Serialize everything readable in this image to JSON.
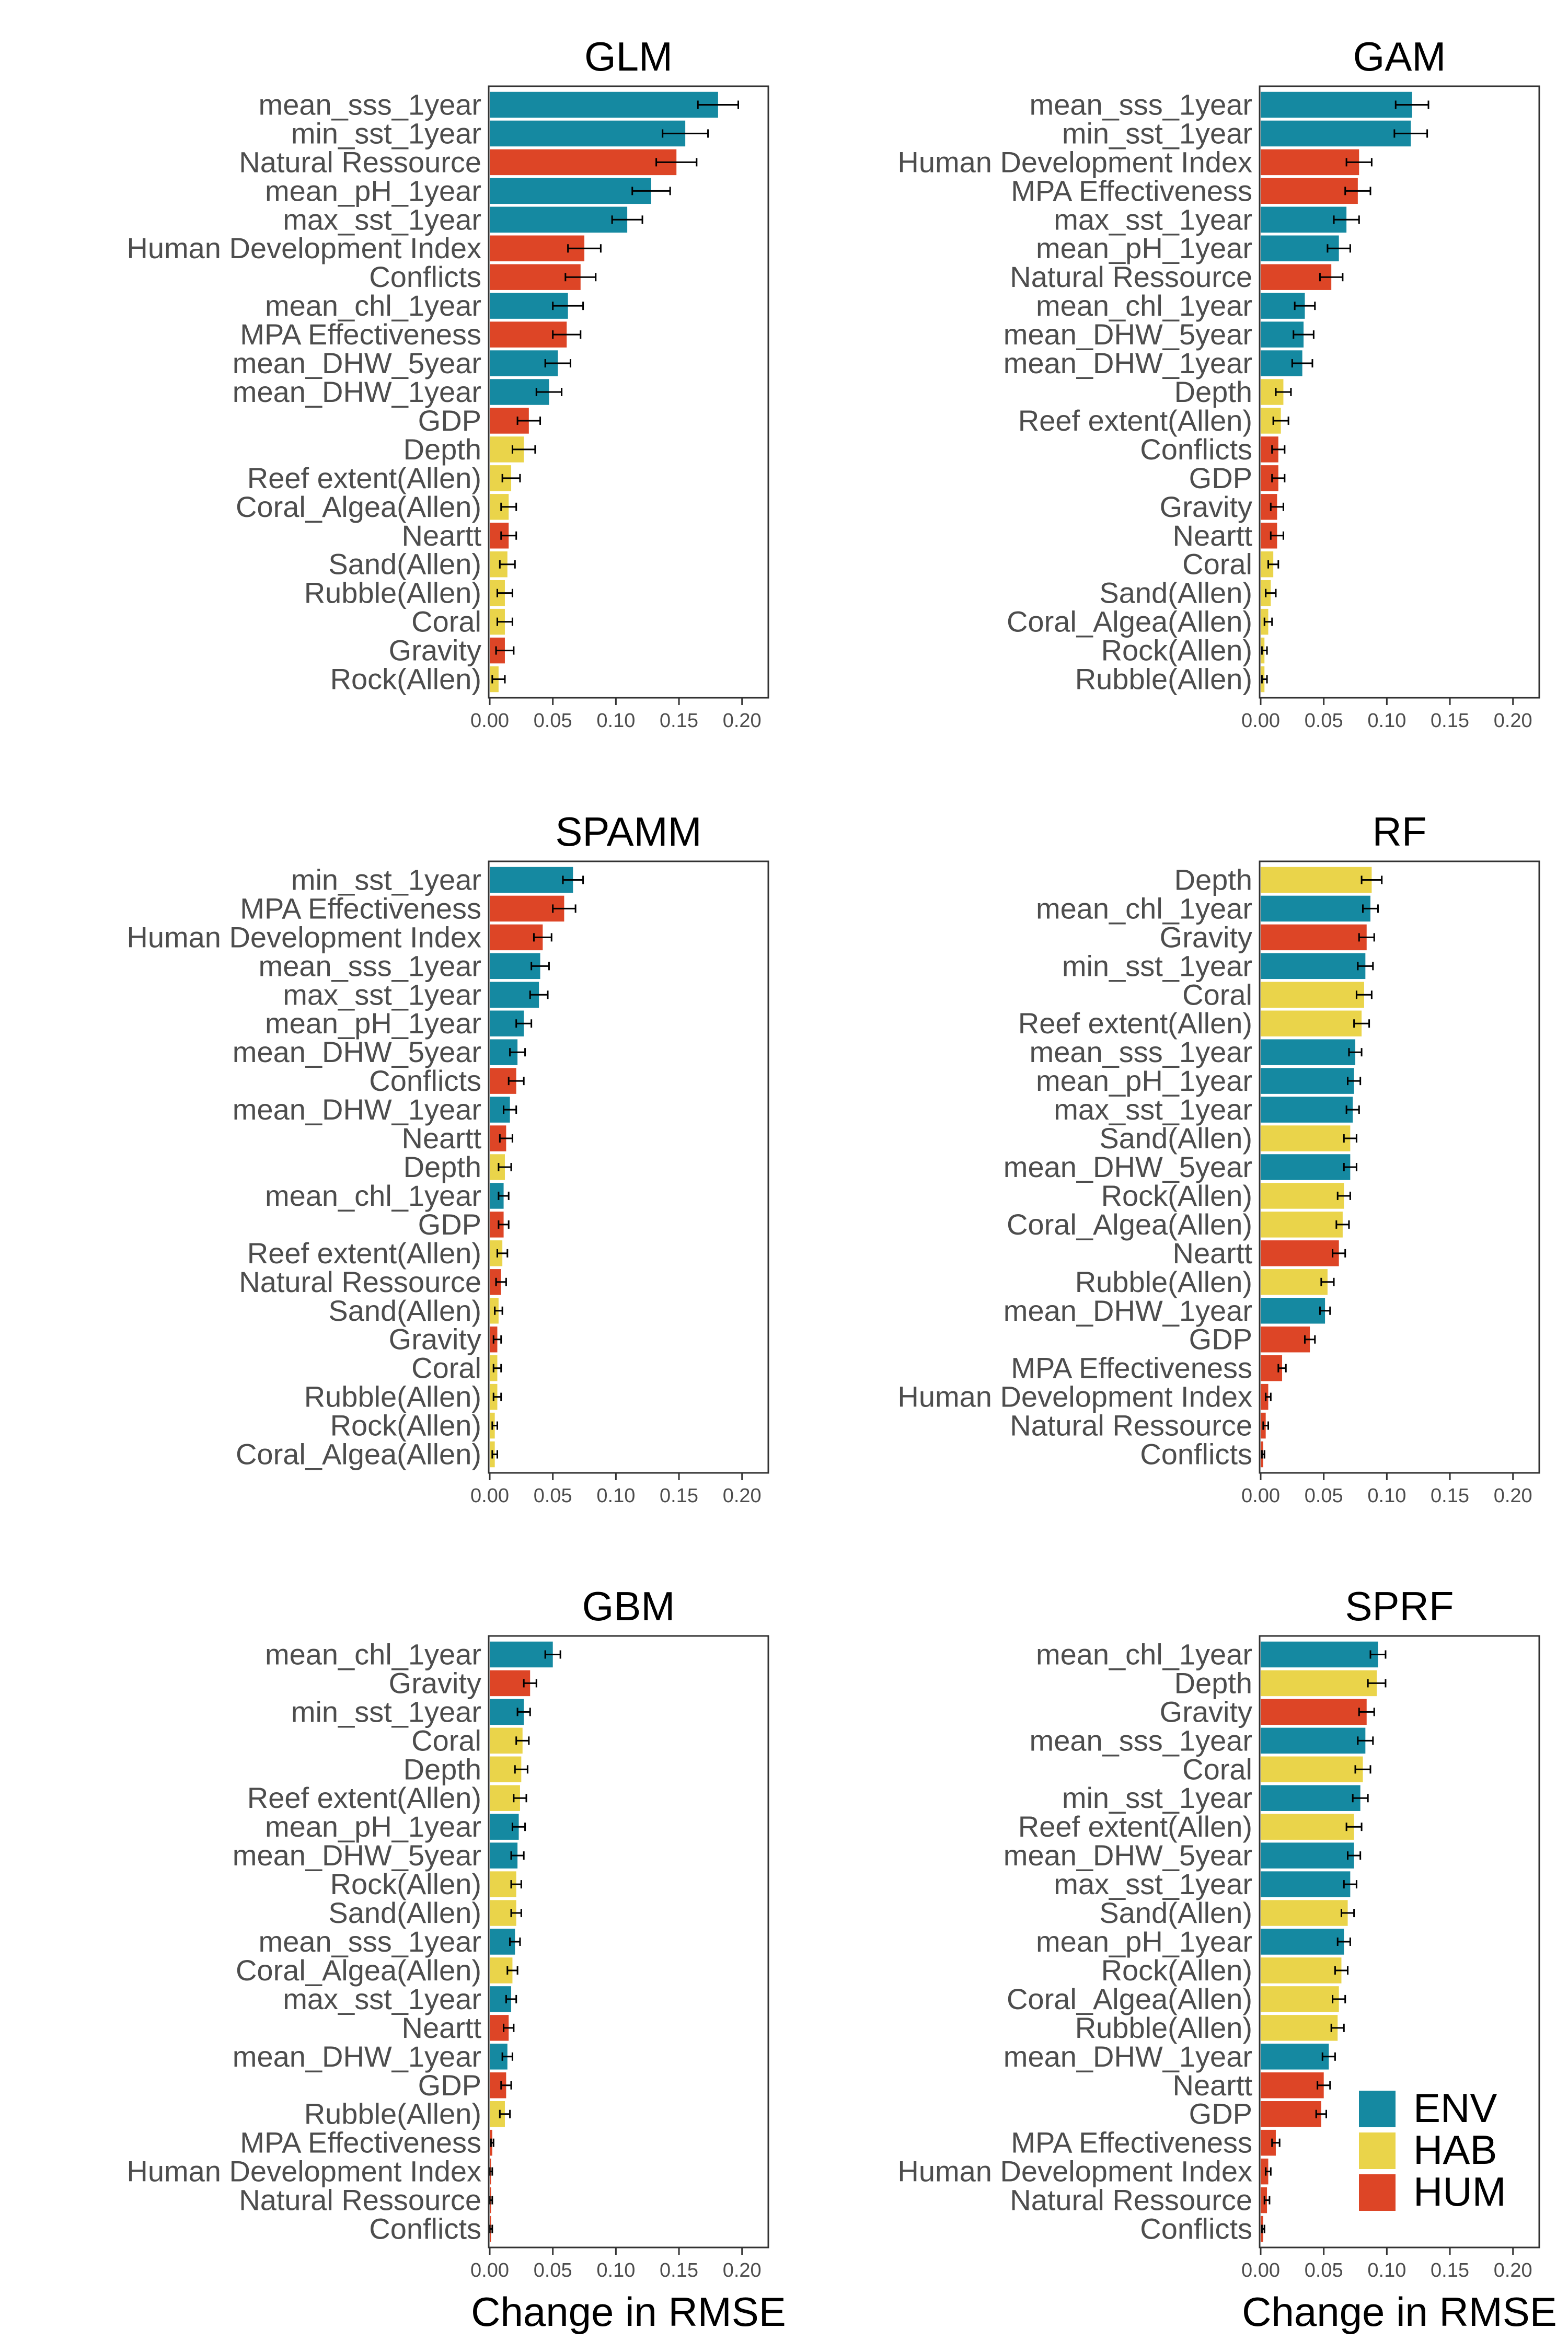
{
  "chart_data": [
    {
      "type": "bar",
      "orientation": "horizontal",
      "title": "GLM",
      "xlabel": "",
      "xlim": [
        0,
        0.22
      ],
      "xticks": [
        "0.00",
        "0.05",
        "0.10",
        "0.15",
        "0.20"
      ],
      "bars": [
        {
          "label": "mean_sss_1year",
          "group": "ENV",
          "value": 0.181,
          "err": 0.016
        },
        {
          "label": "min_sst_1year",
          "group": "ENV",
          "value": 0.155,
          "err": 0.018
        },
        {
          "label": "Natural Ressource",
          "group": "HUM",
          "value": 0.148,
          "err": 0.016
        },
        {
          "label": "mean_pH_1year",
          "group": "ENV",
          "value": 0.128,
          "err": 0.015
        },
        {
          "label": "max_sst_1year",
          "group": "ENV",
          "value": 0.109,
          "err": 0.012
        },
        {
          "label": "Human Development Index",
          "group": "HUM",
          "value": 0.075,
          "err": 0.013
        },
        {
          "label": "Conflicts",
          "group": "HUM",
          "value": 0.072,
          "err": 0.012
        },
        {
          "label": "mean_chl_1year",
          "group": "ENV",
          "value": 0.062,
          "err": 0.012
        },
        {
          "label": "MPA Effectiveness",
          "group": "HUM",
          "value": 0.061,
          "err": 0.011
        },
        {
          "label": "mean_DHW_5year",
          "group": "ENV",
          "value": 0.054,
          "err": 0.01
        },
        {
          "label": "mean_DHW_1year",
          "group": "ENV",
          "value": 0.047,
          "err": 0.01
        },
        {
          "label": "GDP",
          "group": "HUM",
          "value": 0.031,
          "err": 0.009
        },
        {
          "label": "Depth",
          "group": "HAB",
          "value": 0.027,
          "err": 0.009
        },
        {
          "label": "Reef extent(Allen)",
          "group": "HAB",
          "value": 0.017,
          "err": 0.007
        },
        {
          "label": "Coral_Algea(Allen)",
          "group": "HAB",
          "value": 0.015,
          "err": 0.006
        },
        {
          "label": "Neartt",
          "group": "HUM",
          "value": 0.015,
          "err": 0.006
        },
        {
          "label": "Sand(Allen)",
          "group": "HAB",
          "value": 0.014,
          "err": 0.006
        },
        {
          "label": "Rubble(Allen)",
          "group": "HAB",
          "value": 0.012,
          "err": 0.006
        },
        {
          "label": "Coral",
          "group": "HAB",
          "value": 0.012,
          "err": 0.006
        },
        {
          "label": "Gravity",
          "group": "HUM",
          "value": 0.012,
          "err": 0.007
        },
        {
          "label": "Rock(Allen)",
          "group": "HAB",
          "value": 0.007,
          "err": 0.005
        }
      ]
    },
    {
      "type": "bar",
      "orientation": "horizontal",
      "title": "GAM",
      "xlabel": "",
      "xlim": [
        0,
        0.22
      ],
      "xticks": [
        "0.00",
        "0.05",
        "0.10",
        "0.15",
        "0.20"
      ],
      "bars": [
        {
          "label": "mean_sss_1year",
          "group": "ENV",
          "value": 0.12,
          "err": 0.013
        },
        {
          "label": "min_sst_1year",
          "group": "ENV",
          "value": 0.119,
          "err": 0.013
        },
        {
          "label": "Human Development Index",
          "group": "HUM",
          "value": 0.078,
          "err": 0.01
        },
        {
          "label": "MPA Effectiveness",
          "group": "HUM",
          "value": 0.077,
          "err": 0.01
        },
        {
          "label": "max_sst_1year",
          "group": "ENV",
          "value": 0.068,
          "err": 0.01
        },
        {
          "label": "mean_pH_1year",
          "group": "ENV",
          "value": 0.062,
          "err": 0.009
        },
        {
          "label": "Natural Ressource",
          "group": "HUM",
          "value": 0.056,
          "err": 0.009
        },
        {
          "label": "mean_chl_1year",
          "group": "ENV",
          "value": 0.035,
          "err": 0.008
        },
        {
          "label": "mean_DHW_5year",
          "group": "ENV",
          "value": 0.034,
          "err": 0.008
        },
        {
          "label": "mean_DHW_1year",
          "group": "ENV",
          "value": 0.033,
          "err": 0.008
        },
        {
          "label": "Depth",
          "group": "HAB",
          "value": 0.018,
          "err": 0.006
        },
        {
          "label": "Reef extent(Allen)",
          "group": "HAB",
          "value": 0.016,
          "err": 0.006
        },
        {
          "label": "Conflicts",
          "group": "HUM",
          "value": 0.014,
          "err": 0.005
        },
        {
          "label": "GDP",
          "group": "HUM",
          "value": 0.014,
          "err": 0.005
        },
        {
          "label": "Gravity",
          "group": "HUM",
          "value": 0.013,
          "err": 0.005
        },
        {
          "label": "Neartt",
          "group": "HUM",
          "value": 0.013,
          "err": 0.005
        },
        {
          "label": "Coral",
          "group": "HAB",
          "value": 0.01,
          "err": 0.004
        },
        {
          "label": "Sand(Allen)",
          "group": "HAB",
          "value": 0.008,
          "err": 0.004
        },
        {
          "label": "Coral_Algea(Allen)",
          "group": "HAB",
          "value": 0.006,
          "err": 0.003
        },
        {
          "label": "Rock(Allen)",
          "group": "HAB",
          "value": 0.003,
          "err": 0.002
        },
        {
          "label": "Rubble(Allen)",
          "group": "HAB",
          "value": 0.003,
          "err": 0.002
        }
      ]
    },
    {
      "type": "bar",
      "orientation": "horizontal",
      "title": "SPAMM",
      "xlabel": "",
      "xlim": [
        0,
        0.22
      ],
      "xticks": [
        "0.00",
        "0.05",
        "0.10",
        "0.15",
        "0.20"
      ],
      "bars": [
        {
          "label": "min_sst_1year",
          "group": "ENV",
          "value": 0.066,
          "err": 0.008
        },
        {
          "label": "MPA Effectiveness",
          "group": "HUM",
          "value": 0.059,
          "err": 0.009
        },
        {
          "label": "Human Development Index",
          "group": "HUM",
          "value": 0.042,
          "err": 0.007
        },
        {
          "label": "mean_sss_1year",
          "group": "ENV",
          "value": 0.04,
          "err": 0.007
        },
        {
          "label": "max_sst_1year",
          "group": "ENV",
          "value": 0.039,
          "err": 0.007
        },
        {
          "label": "mean_pH_1year",
          "group": "ENV",
          "value": 0.027,
          "err": 0.006
        },
        {
          "label": "mean_DHW_5year",
          "group": "ENV",
          "value": 0.022,
          "err": 0.006
        },
        {
          "label": "Conflicts",
          "group": "HUM",
          "value": 0.021,
          "err": 0.006
        },
        {
          "label": "mean_DHW_1year",
          "group": "ENV",
          "value": 0.016,
          "err": 0.005
        },
        {
          "label": "Neartt",
          "group": "HUM",
          "value": 0.013,
          "err": 0.005
        },
        {
          "label": "Depth",
          "group": "HAB",
          "value": 0.012,
          "err": 0.005
        },
        {
          "label": "mean_chl_1year",
          "group": "ENV",
          "value": 0.011,
          "err": 0.004
        },
        {
          "label": "GDP",
          "group": "HUM",
          "value": 0.011,
          "err": 0.004
        },
        {
          "label": "Reef extent(Allen)",
          "group": "HAB",
          "value": 0.01,
          "err": 0.004
        },
        {
          "label": "Natural Ressource",
          "group": "HUM",
          "value": 0.009,
          "err": 0.004
        },
        {
          "label": "Sand(Allen)",
          "group": "HAB",
          "value": 0.007,
          "err": 0.003
        },
        {
          "label": "Gravity",
          "group": "HUM",
          "value": 0.006,
          "err": 0.003
        },
        {
          "label": "Coral",
          "group": "HAB",
          "value": 0.006,
          "err": 0.003
        },
        {
          "label": "Rubble(Allen)",
          "group": "HAB",
          "value": 0.006,
          "err": 0.003
        },
        {
          "label": "Rock(Allen)",
          "group": "HAB",
          "value": 0.004,
          "err": 0.002
        },
        {
          "label": "Coral_Algea(Allen)",
          "group": "HAB",
          "value": 0.004,
          "err": 0.002
        }
      ]
    },
    {
      "type": "bar",
      "orientation": "horizontal",
      "title": "RF",
      "xlabel": "",
      "xlim": [
        0,
        0.22
      ],
      "xticks": [
        "0.00",
        "0.05",
        "0.10",
        "0.15",
        "0.20"
      ],
      "bars": [
        {
          "label": "Depth",
          "group": "HAB",
          "value": 0.088,
          "err": 0.008
        },
        {
          "label": "mean_chl_1year",
          "group": "ENV",
          "value": 0.087,
          "err": 0.006
        },
        {
          "label": "Gravity",
          "group": "HUM",
          "value": 0.084,
          "err": 0.006
        },
        {
          "label": "min_sst_1year",
          "group": "ENV",
          "value": 0.083,
          "err": 0.006
        },
        {
          "label": "Coral",
          "group": "HAB",
          "value": 0.082,
          "err": 0.006
        },
        {
          "label": "Reef extent(Allen)",
          "group": "HAB",
          "value": 0.08,
          "err": 0.006
        },
        {
          "label": "mean_sss_1year",
          "group": "ENV",
          "value": 0.075,
          "err": 0.005
        },
        {
          "label": "mean_pH_1year",
          "group": "ENV",
          "value": 0.074,
          "err": 0.005
        },
        {
          "label": "max_sst_1year",
          "group": "ENV",
          "value": 0.073,
          "err": 0.005
        },
        {
          "label": "Sand(Allen)",
          "group": "HAB",
          "value": 0.071,
          "err": 0.005
        },
        {
          "label": "mean_DHW_5year",
          "group": "ENV",
          "value": 0.071,
          "err": 0.005
        },
        {
          "label": "Rock(Allen)",
          "group": "HAB",
          "value": 0.066,
          "err": 0.005
        },
        {
          "label": "Coral_Algea(Allen)",
          "group": "HAB",
          "value": 0.065,
          "err": 0.005
        },
        {
          "label": "Neartt",
          "group": "HUM",
          "value": 0.062,
          "err": 0.005
        },
        {
          "label": "Rubble(Allen)",
          "group": "HAB",
          "value": 0.053,
          "err": 0.005
        },
        {
          "label": "mean_DHW_1year",
          "group": "ENV",
          "value": 0.051,
          "err": 0.004
        },
        {
          "label": "GDP",
          "group": "HUM",
          "value": 0.039,
          "err": 0.004
        },
        {
          "label": "MPA Effectiveness",
          "group": "HUM",
          "value": 0.017,
          "err": 0.003
        },
        {
          "label": "Human Development Index",
          "group": "HUM",
          "value": 0.006,
          "err": 0.002
        },
        {
          "label": "Natural Ressource",
          "group": "HUM",
          "value": 0.004,
          "err": 0.002
        },
        {
          "label": "Conflicts",
          "group": "HUM",
          "value": 0.002,
          "err": 0.001
        }
      ]
    },
    {
      "type": "bar",
      "orientation": "horizontal",
      "title": "GBM",
      "xlabel": "Change in RMSE",
      "xlim": [
        0,
        0.22
      ],
      "xticks": [
        "0.00",
        "0.05",
        "0.10",
        "0.15",
        "0.20"
      ],
      "bars": [
        {
          "label": "mean_chl_1year",
          "group": "ENV",
          "value": 0.05,
          "err": 0.006
        },
        {
          "label": "Gravity",
          "group": "HUM",
          "value": 0.032,
          "err": 0.005
        },
        {
          "label": "min_sst_1year",
          "group": "ENV",
          "value": 0.027,
          "err": 0.005
        },
        {
          "label": "Coral",
          "group": "HAB",
          "value": 0.026,
          "err": 0.005
        },
        {
          "label": "Depth",
          "group": "HAB",
          "value": 0.025,
          "err": 0.005
        },
        {
          "label": "Reef extent(Allen)",
          "group": "HAB",
          "value": 0.024,
          "err": 0.005
        },
        {
          "label": "mean_pH_1year",
          "group": "ENV",
          "value": 0.023,
          "err": 0.005
        },
        {
          "label": "mean_DHW_5year",
          "group": "ENV",
          "value": 0.022,
          "err": 0.005
        },
        {
          "label": "Rock(Allen)",
          "group": "HAB",
          "value": 0.021,
          "err": 0.004
        },
        {
          "label": "Sand(Allen)",
          "group": "HAB",
          "value": 0.021,
          "err": 0.004
        },
        {
          "label": "mean_sss_1year",
          "group": "ENV",
          "value": 0.02,
          "err": 0.004
        },
        {
          "label": "Coral_Algea(Allen)",
          "group": "HAB",
          "value": 0.018,
          "err": 0.004
        },
        {
          "label": "max_sst_1year",
          "group": "ENV",
          "value": 0.017,
          "err": 0.004
        },
        {
          "label": "Neartt",
          "group": "HUM",
          "value": 0.015,
          "err": 0.004
        },
        {
          "label": "mean_DHW_1year",
          "group": "ENV",
          "value": 0.014,
          "err": 0.004
        },
        {
          "label": "GDP",
          "group": "HUM",
          "value": 0.013,
          "err": 0.004
        },
        {
          "label": "Rubble(Allen)",
          "group": "HAB",
          "value": 0.012,
          "err": 0.004
        },
        {
          "label": "MPA Effectiveness",
          "group": "HUM",
          "value": 0.002,
          "err": 0.001
        },
        {
          "label": "Human Development Index",
          "group": "HUM",
          "value": 0.001,
          "err": 0.001
        },
        {
          "label": "Natural Ressource",
          "group": "HUM",
          "value": 0.001,
          "err": 0.001
        },
        {
          "label": "Conflicts",
          "group": "HUM",
          "value": 0.001,
          "err": 0.001
        }
      ]
    },
    {
      "type": "bar",
      "orientation": "horizontal",
      "title": "SPRF",
      "xlabel": "Change in RMSE",
      "xlim": [
        0,
        0.22
      ],
      "xticks": [
        "0.00",
        "0.05",
        "0.10",
        "0.15",
        "0.20"
      ],
      "bars": [
        {
          "label": "mean_chl_1year",
          "group": "ENV",
          "value": 0.093,
          "err": 0.006
        },
        {
          "label": "Depth",
          "group": "HAB",
          "value": 0.092,
          "err": 0.007
        },
        {
          "label": "Gravity",
          "group": "HUM",
          "value": 0.084,
          "err": 0.006
        },
        {
          "label": "mean_sss_1year",
          "group": "ENV",
          "value": 0.083,
          "err": 0.006
        },
        {
          "label": "Coral",
          "group": "HAB",
          "value": 0.081,
          "err": 0.006
        },
        {
          "label": "min_sst_1year",
          "group": "ENV",
          "value": 0.079,
          "err": 0.006
        },
        {
          "label": "Reef extent(Allen)",
          "group": "HAB",
          "value": 0.074,
          "err": 0.006
        },
        {
          "label": "mean_DHW_5year",
          "group": "ENV",
          "value": 0.074,
          "err": 0.005
        },
        {
          "label": "max_sst_1year",
          "group": "ENV",
          "value": 0.071,
          "err": 0.005
        },
        {
          "label": "Sand(Allen)",
          "group": "HAB",
          "value": 0.069,
          "err": 0.005
        },
        {
          "label": "mean_pH_1year",
          "group": "ENV",
          "value": 0.066,
          "err": 0.005
        },
        {
          "label": "Rock(Allen)",
          "group": "HAB",
          "value": 0.064,
          "err": 0.005
        },
        {
          "label": "Coral_Algea(Allen)",
          "group": "HAB",
          "value": 0.062,
          "err": 0.005
        },
        {
          "label": "Rubble(Allen)",
          "group": "HAB",
          "value": 0.061,
          "err": 0.005
        },
        {
          "label": "mean_DHW_1year",
          "group": "ENV",
          "value": 0.054,
          "err": 0.005
        },
        {
          "label": "Neartt",
          "group": "HUM",
          "value": 0.05,
          "err": 0.005
        },
        {
          "label": "GDP",
          "group": "HUM",
          "value": 0.048,
          "err": 0.004
        },
        {
          "label": "MPA Effectiveness",
          "group": "HUM",
          "value": 0.012,
          "err": 0.003
        },
        {
          "label": "Human Development Index",
          "group": "HUM",
          "value": 0.006,
          "err": 0.002
        },
        {
          "label": "Natural Ressource",
          "group": "HUM",
          "value": 0.005,
          "err": 0.002
        },
        {
          "label": "Conflicts",
          "group": "HUM",
          "value": 0.002,
          "err": 0.001
        }
      ]
    }
  ],
  "legend": {
    "placement": "bottom-right",
    "items": [
      {
        "label": "ENV",
        "color": "#1589a1"
      },
      {
        "label": "HAB",
        "color": "#ead44a"
      },
      {
        "label": "HUM",
        "color": "#dd4526"
      }
    ]
  },
  "colors": {
    "ENV": "#1589a1",
    "HAB": "#ead44a",
    "HUM": "#dd4526",
    "errorbar": "#000000",
    "panel_border": "#333333"
  }
}
